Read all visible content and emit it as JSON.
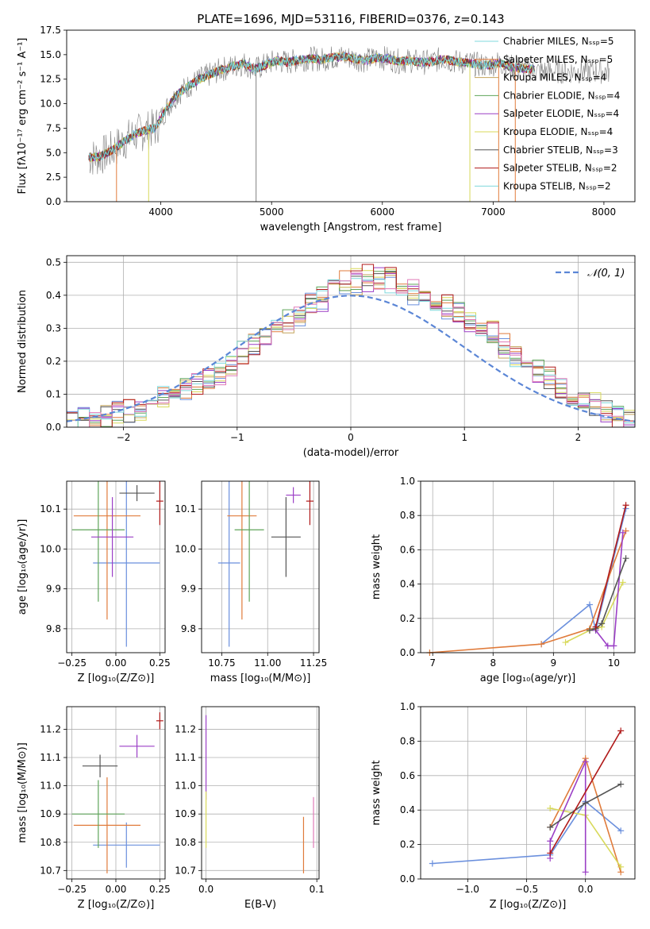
{
  "colors": [
    "#6a8fdd",
    "#e07b3b",
    "#c4a35a",
    "#5fa55a",
    "#9b3fc6",
    "#d8d95a",
    "#555555",
    "#b01a1a",
    "#7fd8dc",
    "#e07ab8"
  ],
  "chart_data": [
    {
      "id": "spectrum",
      "type": "line",
      "title": "PLATE=1696, MJD=53116, FIBERID=0376, z=0.143",
      "xlabel": "wavelength [Angstrom, rest frame]",
      "ylabel": "Flux [fλ10⁻¹⁷ erg cm⁻² s⁻¹ A⁻¹]",
      "xlim": [
        3150,
        8280
      ],
      "ylim": [
        0,
        17.5
      ],
      "xticks": [
        4000,
        5000,
        6000,
        7000,
        8000
      ],
      "yticks": [
        0.0,
        2.5,
        5.0,
        7.5,
        10.0,
        12.5,
        15.0,
        17.5
      ],
      "legend_position": "right",
      "legend": [
        "Chabrier MILES, Nₛₛₚ=5",
        "Salpeter MILES, Nₛₛₚ=5",
        "Kroupa MILES, Nₛₛₚ=4",
        "Chabrier ELODIE, Nₛₛₚ=4",
        "Salpeter ELODIE, Nₛₛₚ=4",
        "Kroupa ELODIE, Nₛₛₚ=4",
        "Chabrier STELIB, Nₛₛₚ=3",
        "Salpeter STELIB, Nₛₛₚ=2",
        "Kroupa STELIB, Nₛₛₚ=2"
      ],
      "series": [
        {
          "x": [
            3350,
            3450,
            3550,
            3650,
            3750,
            3850,
            3950,
            4050,
            4150,
            4250,
            4350,
            4450,
            4550,
            4650,
            4750,
            4850,
            4950,
            5050,
            5150,
            5250,
            5350,
            5450,
            5550,
            5650,
            5750,
            5850,
            5950,
            6050,
            6150,
            6250,
            6350,
            6450,
            6550,
            6650,
            6750,
            6850,
            6950,
            7050,
            7150,
            7250,
            7350
          ],
          "y": [
            4.5,
            4.6,
            5.2,
            6.0,
            6.8,
            7.2,
            7.5,
            9.5,
            11.0,
            11.8,
            12.5,
            13.0,
            13.5,
            13.8,
            14.1,
            13.5,
            14.0,
            14.4,
            14.2,
            14.5,
            14.6,
            14.5,
            14.7,
            14.8,
            14.6,
            14.4,
            14.7,
            14.6,
            14.3,
            14.4,
            14.2,
            14.3,
            14.6,
            14.3,
            14.2,
            14.0,
            13.9,
            14.2,
            13.8,
            13.6,
            13.5
          ]
        }
      ]
    },
    {
      "id": "residuals",
      "type": "histogram",
      "xlabel": "(data-model)/error",
      "ylabel": "Normed distribution",
      "xlim": [
        -2.5,
        2.5
      ],
      "ylim": [
        0,
        0.52
      ],
      "xticks": [
        -2,
        -1,
        0,
        1,
        2
      ],
      "yticks": [
        0.0,
        0.1,
        0.2,
        0.3,
        0.4,
        0.5
      ],
      "legend_position": "top-right",
      "gaussian_label": "𝒩(0, 1)",
      "bin_width": 0.1,
      "series": [
        {
          "values": [
            0.02,
            0.03,
            0.03,
            0.04,
            0.05,
            0.04,
            0.06,
            0.08,
            0.09,
            0.12,
            0.11,
            0.13,
            0.14,
            0.17,
            0.19,
            0.23,
            0.25,
            0.28,
            0.31,
            0.32,
            0.34,
            0.38,
            0.38,
            0.42,
            0.41,
            0.43,
            0.44,
            0.46,
            0.44,
            0.42,
            0.4,
            0.41,
            0.38,
            0.36,
            0.34,
            0.32,
            0.3,
            0.27,
            0.24,
            0.21,
            0.19,
            0.16,
            0.14,
            0.11,
            0.09,
            0.07,
            0.06,
            0.05,
            0.04,
            0.03
          ]
        },
        {
          "values": [
            0.01,
            0.02,
            0.03,
            0.03,
            0.04,
            0.05,
            0.05,
            0.07,
            0.09,
            0.1,
            0.12,
            0.13,
            0.15,
            0.16,
            0.18,
            0.22,
            0.25,
            0.27,
            0.3,
            0.33,
            0.35,
            0.37,
            0.4,
            0.41,
            0.44,
            0.45,
            0.46,
            0.44,
            0.45,
            0.43,
            0.42,
            0.4,
            0.39,
            0.37,
            0.35,
            0.33,
            0.31,
            0.29,
            0.25,
            0.22,
            0.2,
            0.17,
            0.15,
            0.12,
            0.1,
            0.08,
            0.07,
            0.05,
            0.03,
            0.02
          ]
        }
      ]
    },
    {
      "id": "age-vs-Z",
      "type": "scatter",
      "xlabel": "Z [log₁₀(Z/Z⊙)]",
      "ylabel": "age  [log₁₀(age/yr)]",
      "xlim": [
        -0.28,
        0.28
      ],
      "ylim": [
        9.74,
        10.17
      ],
      "xticks": [
        -0.25,
        0.0,
        0.25
      ],
      "yticks": [
        9.8,
        9.9,
        10.0,
        10.1
      ],
      "series": [
        {
          "x": 0.06,
          "y": 9.965,
          "xerr": 0.19,
          "yerr": 0.21
        },
        {
          "x": -0.05,
          "y": 10.083,
          "xerr": 0.19,
          "yerr": 0.26
        },
        {
          "x": -0.1,
          "y": 10.048,
          "xerr": 0.15,
          "yerr": 0.18
        },
        {
          "x": 0.12,
          "y": 10.14,
          "xerr": 0.1,
          "yerr": 0.02
        },
        {
          "x": -0.02,
          "y": 10.03,
          "xerr": 0.12,
          "yerr": 0.1
        },
        {
          "x": 0.25,
          "y": 10.12,
          "xerr": 0.02,
          "yerr": 0.06
        }
      ]
    },
    {
      "id": "age-vs-mass",
      "type": "scatter",
      "xlabel": "mass [log₁₀(M/M⊙)]",
      "ylabel": "",
      "xlim": [
        10.64,
        11.28
      ],
      "ylim": [
        9.74,
        10.17
      ],
      "xticks": [
        10.75,
        11.0,
        11.25
      ],
      "yticks": [
        9.8,
        9.9,
        10.0,
        10.1
      ],
      "series": [
        {
          "x": 10.79,
          "y": 9.965,
          "xerr": 0.06,
          "yerr": 0.21
        },
        {
          "x": 10.86,
          "y": 10.083,
          "xerr": 0.08,
          "yerr": 0.26
        },
        {
          "x": 10.9,
          "y": 10.048,
          "xerr": 0.08,
          "yerr": 0.18
        },
        {
          "x": 11.1,
          "y": 10.03,
          "xerr": 0.08,
          "yerr": 0.1
        },
        {
          "x": 11.14,
          "y": 10.135,
          "xerr": 0.04,
          "yerr": 0.02
        },
        {
          "x": 11.23,
          "y": 10.12,
          "xerr": 0.02,
          "yerr": 0.06
        }
      ]
    },
    {
      "id": "weight-vs-age",
      "type": "line",
      "xlabel": "age  [log₁₀(age/yr)]",
      "ylabel": "mass weight",
      "xlim": [
        6.8,
        10.35
      ],
      "ylim": [
        0,
        1.0
      ],
      "xticks": [
        7,
        8,
        9,
        10
      ],
      "yticks": [
        0.0,
        0.2,
        0.4,
        0.6,
        0.8,
        1.0
      ],
      "series": [
        {
          "x": [
            8.8,
            9.6,
            9.7,
            10.2
          ],
          "y": [
            0.05,
            0.28,
            0.13,
            0.84
          ]
        },
        {
          "x": [
            6.95,
            8.8,
            9.6,
            10.2
          ],
          "y": [
            0.0,
            0.05,
            0.14,
            0.71
          ]
        },
        {
          "x": [
            9.2,
            9.6,
            9.8,
            10.15
          ],
          "y": [
            0.06,
            0.13,
            0.15,
            0.41
          ]
        },
        {
          "x": [
            9.7,
            9.9,
            10.0,
            10.15
          ],
          "y": [
            0.13,
            0.04,
            0.04,
            0.7
          ]
        },
        {
          "x": [
            9.6,
            9.7,
            9.8,
            10.2
          ],
          "y": [
            0.13,
            0.14,
            0.17,
            0.55
          ]
        },
        {
          "x": [
            9.7,
            10.2
          ],
          "y": [
            0.15,
            0.86
          ]
        }
      ]
    },
    {
      "id": "mass-vs-Z",
      "type": "scatter",
      "xlabel": "Z [log₁₀(Z/Z⊙)]",
      "ylabel": "mass [log₁₀(M/M⊙)]",
      "xlim": [
        -0.28,
        0.28
      ],
      "ylim": [
        10.67,
        11.28
      ],
      "xticks": [
        -0.25,
        0.0,
        0.25
      ],
      "yticks": [
        10.7,
        10.8,
        10.9,
        11.0,
        11.1,
        11.2
      ],
      "series": [
        {
          "x": 0.06,
          "y": 10.79,
          "xerr": 0.19,
          "yerr": 0.08
        },
        {
          "x": -0.05,
          "y": 10.86,
          "xerr": 0.19,
          "yerr": 0.17
        },
        {
          "x": -0.1,
          "y": 10.9,
          "xerr": 0.15,
          "yerr": 0.12
        },
        {
          "x": -0.09,
          "y": 11.07,
          "xerr": 0.1,
          "yerr": 0.04
        },
        {
          "x": 0.12,
          "y": 11.14,
          "xerr": 0.1,
          "yerr": 0.04
        },
        {
          "x": 0.25,
          "y": 11.23,
          "xerr": 0.02,
          "yerr": 0.03
        }
      ]
    },
    {
      "id": "mass-vs-EBV",
      "type": "scatter",
      "xlabel": "E(B-V)",
      "ylabel": "",
      "xlim": [
        -0.004,
        0.102
      ],
      "ylim": [
        10.67,
        11.28
      ],
      "xticks": [
        0.0,
        0.1
      ],
      "yticks": [
        10.7,
        10.8,
        10.9,
        11.0,
        11.1,
        11.2
      ],
      "series": [
        {
          "x": 0.0,
          "y": 11.1,
          "xerr": 0.0,
          "yerr": 0.15
        },
        {
          "x": 0.0,
          "y": 10.88,
          "xerr": 0.0,
          "yerr": 0.1
        },
        {
          "x": 0.088,
          "y": 10.79,
          "xerr": 0.0,
          "yerr": 0.1
        },
        {
          "x": 0.097,
          "y": 10.87,
          "xerr": 0.0,
          "yerr": 0.09
        }
      ]
    },
    {
      "id": "weight-vs-Z",
      "type": "line",
      "xlabel": "Z [log₁₀(Z/Z⊙)]",
      "ylabel": "mass weight",
      "xlim": [
        -1.4,
        0.42
      ],
      "ylim": [
        0,
        1.0
      ],
      "xticks": [
        -1.0,
        -0.5,
        0.0
      ],
      "yticks": [
        0.0,
        0.2,
        0.4,
        0.6,
        0.8,
        1.0
      ],
      "series": [
        {
          "x": [
            -1.3,
            -0.3,
            0.0,
            0.3
          ],
          "y": [
            0.09,
            0.14,
            0.45,
            0.28
          ]
        },
        {
          "x": [
            -0.3,
            0.0,
            0.3
          ],
          "y": [
            0.3,
            0.7,
            0.04
          ]
        },
        {
          "x": [
            -0.3,
            0.0,
            0.3
          ],
          "y": [
            0.41,
            0.37,
            0.07
          ]
        },
        {
          "x": [
            -0.3,
            -0.3,
            0.0,
            0.0
          ],
          "y": [
            0.12,
            0.22,
            0.68,
            0.04
          ]
        },
        {
          "x": [
            -0.3,
            0.0,
            0.3
          ],
          "y": [
            0.3,
            0.44,
            0.55
          ]
        },
        {
          "x": [
            -0.3,
            0.3
          ],
          "y": [
            0.15,
            0.86
          ]
        }
      ]
    }
  ]
}
